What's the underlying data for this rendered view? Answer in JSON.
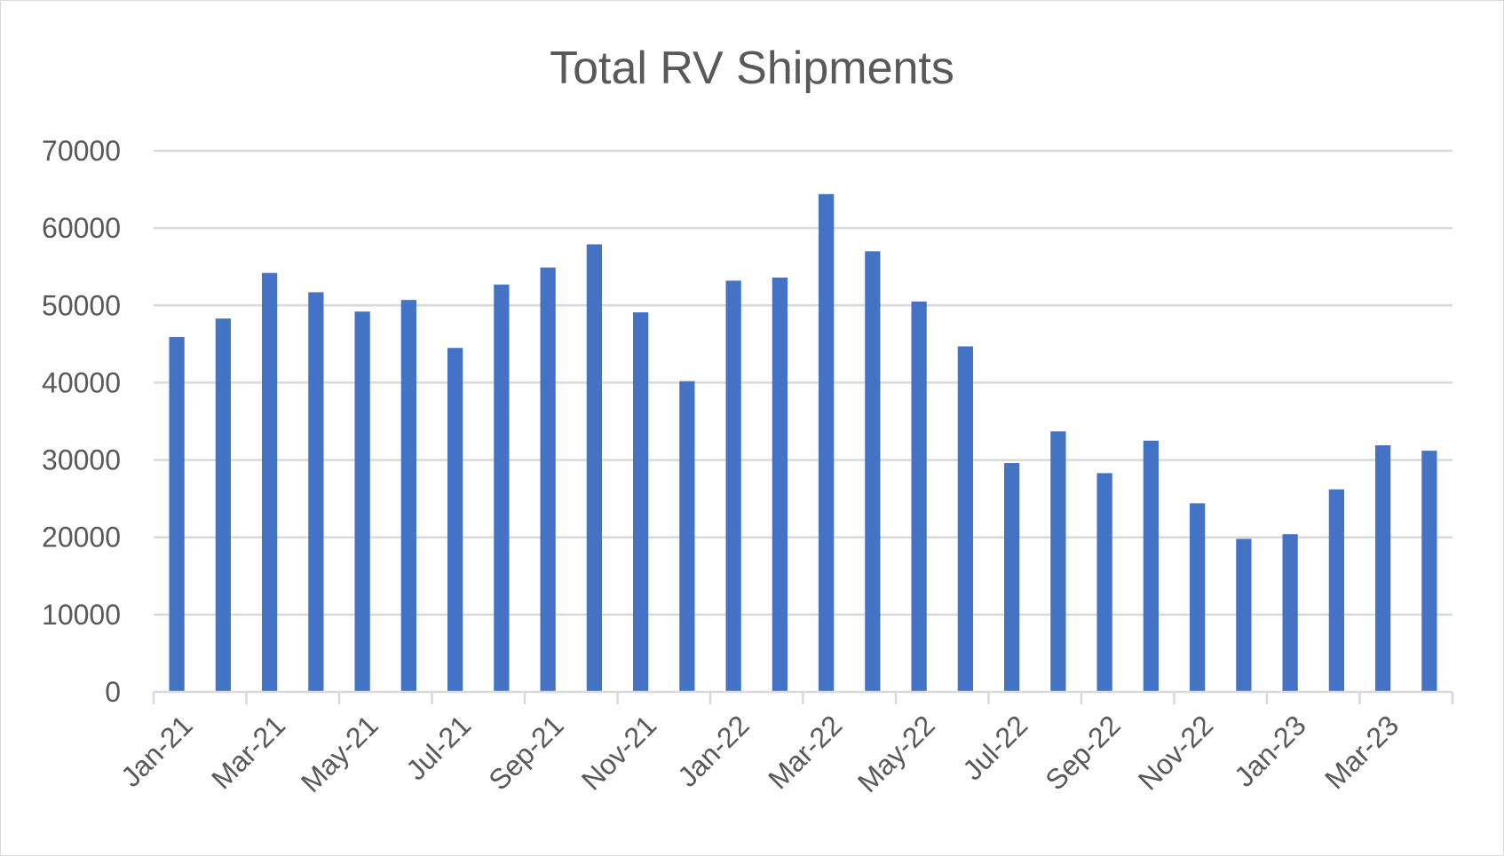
{
  "chart_data": {
    "type": "bar",
    "title": "Total RV Shipments",
    "xlabel": "",
    "ylabel": "",
    "ylim": [
      0,
      70000
    ],
    "yticks": [
      0,
      10000,
      20000,
      30000,
      40000,
      50000,
      60000,
      70000
    ],
    "ytick_labels": [
      "0",
      "10000",
      "20000",
      "30000",
      "40000",
      "50000",
      "60000",
      "70000"
    ],
    "grid": true,
    "legend": "none",
    "bar_color": "#4472C4",
    "gridline_color": "#d9d9d9",
    "text_color": "#595959",
    "categories": [
      "Jan-21",
      "Feb-21",
      "Mar-21",
      "Apr-21",
      "May-21",
      "Jun-21",
      "Jul-21",
      "Aug-21",
      "Sep-21",
      "Oct-21",
      "Nov-21",
      "Dec-21",
      "Jan-22",
      "Feb-22",
      "Mar-22",
      "Apr-22",
      "May-22",
      "Jun-22",
      "Jul-22",
      "Aug-22",
      "Sep-22",
      "Oct-22",
      "Nov-22",
      "Dec-22",
      "Jan-23",
      "Feb-23",
      "Mar-23",
      "Apr-23"
    ],
    "values": [
      45900,
      48300,
      54200,
      51700,
      49200,
      50700,
      44500,
      52700,
      54900,
      57900,
      49100,
      40200,
      53200,
      53600,
      64400,
      57000,
      50500,
      44700,
      29600,
      33700,
      28300,
      32500,
      24400,
      19800,
      20400,
      26200,
      31900,
      31200
    ],
    "xtick_labels": [
      "Jan-21",
      "Mar-21",
      "May-21",
      "Jul-21",
      "Sep-21",
      "Nov-21",
      "Jan-22",
      "Mar-22",
      "May-22",
      "Jul-22",
      "Sep-22",
      "Nov-22",
      "Jan-23",
      "Mar-23"
    ]
  }
}
